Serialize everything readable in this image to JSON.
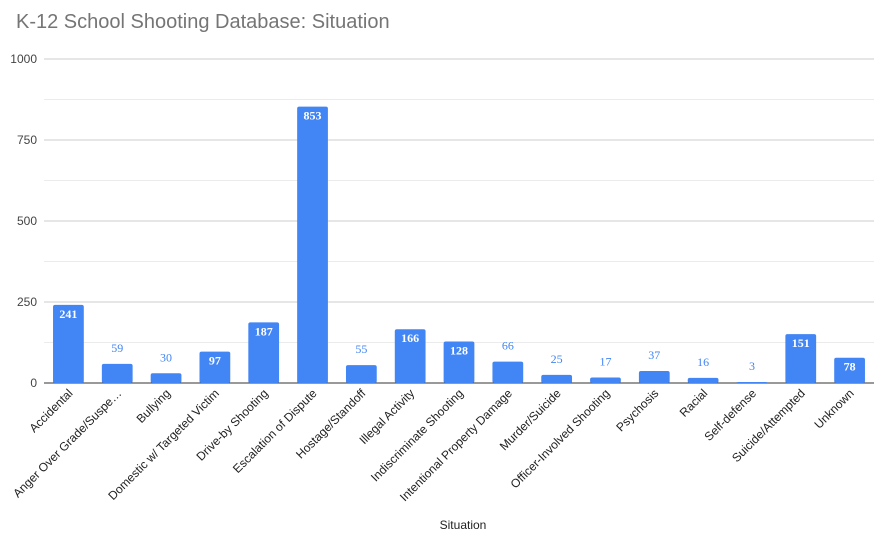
{
  "chart_data": {
    "type": "bar",
    "title": "K-12 School Shooting Database: Situation",
    "xlabel": "Situation",
    "ylabel": "",
    "ylim": [
      0,
      1000
    ],
    "yticks": [
      0,
      250,
      500,
      750,
      1000
    ],
    "grid": true,
    "legend": "none",
    "bar_color": "#4285f4",
    "categories": [
      "Accidental",
      "Anger Over Grade/Suspe…",
      "Bullying",
      "Domestic w/ Targeted Victim",
      "Drive-by Shooting",
      "Escalation of Dispute",
      "Hostage/Standoff",
      "Illegal Activity",
      "Indiscriminate Shooting",
      "Intentional Property Damage",
      "Murder/Suicide",
      "Officer-Involved Shooting",
      "Psychosis",
      "Racial",
      "Self-defense",
      "Suicide/Attempted",
      "Unknown"
    ],
    "values": [
      241,
      59,
      30,
      97,
      187,
      853,
      55,
      166,
      128,
      66,
      25,
      17,
      37,
      16,
      3,
      151,
      78
    ]
  }
}
